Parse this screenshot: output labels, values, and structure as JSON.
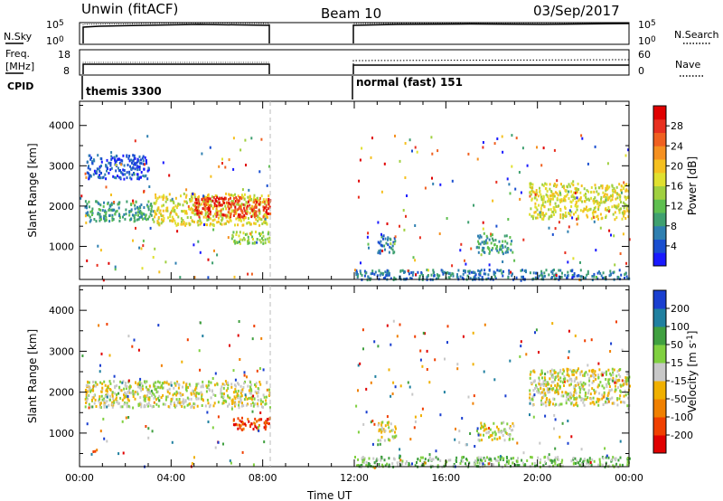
{
  "header": {
    "station": "Unwin (fitACF)",
    "beam": "Beam 10",
    "date": "03/Sep/2017"
  },
  "summary": {
    "nsky_label": "N.Sky",
    "freq_label_1": "Freq.",
    "freq_label_2": "[MHz]",
    "cpid_label": "CPID",
    "nsearch_label": "N.Search",
    "nave_label": "Nave",
    "nsky_ticks": [
      "10^5",
      "10^0"
    ],
    "nsearch_ticks": [
      "10^5",
      "10^0"
    ],
    "freq_ticks": [
      "18",
      "8"
    ],
    "nave_ticks": [
      "60",
      "0"
    ],
    "cpid_segments": [
      {
        "label": "themis 3300",
        "start_hour": 0,
        "end_hour": 8.33
      },
      {
        "label": "normal (fast) 151",
        "start_hour": 12,
        "end_hour": 24
      }
    ]
  },
  "chart_data": [
    {
      "type": "heatmap",
      "parameter": "power",
      "xlabel": "",
      "ylabel": "Slant Range [km]",
      "xlim": [
        0,
        24
      ],
      "ylim": [
        180,
        4600
      ],
      "yticks": [
        1000,
        2000,
        3000,
        4000
      ],
      "colorbar": {
        "label": "Power [dB]",
        "ticks": [
          "4",
          "8",
          "12",
          "16",
          "20",
          "24",
          "28"
        ],
        "colors": [
          "#1a1aff",
          "#1a4fd0",
          "#2f7fb0",
          "#3fa070",
          "#5fbf50",
          "#a0d040",
          "#e0e030",
          "#f5c020",
          "#f59020",
          "#f06020",
          "#e83020",
          "#e00000"
        ]
      },
      "regions": [
        {
          "t0": 0.2,
          "t1": 3.2,
          "r0": 1650,
          "r1": 2150,
          "level": 3
        },
        {
          "t0": 3.2,
          "t1": 8.3,
          "r0": 1550,
          "r1": 2350,
          "level": 6
        },
        {
          "t0": 5.0,
          "t1": 8.3,
          "r0": 1750,
          "r1": 2250,
          "level": 10
        },
        {
          "t0": 6.6,
          "t1": 8.3,
          "r0": 1100,
          "r1": 1400,
          "level": 5
        },
        {
          "t0": 13.0,
          "t1": 13.8,
          "r0": 850,
          "r1": 1300,
          "level": 2
        },
        {
          "t0": 17.3,
          "t1": 18.9,
          "r0": 850,
          "r1": 1300,
          "level": 3
        },
        {
          "t0": 12.0,
          "t1": 24.0,
          "r0": 200,
          "r1": 450,
          "level": 2
        },
        {
          "t0": 19.6,
          "t1": 24.0,
          "r0": 1700,
          "r1": 2600,
          "level": 6
        },
        {
          "t0": 0.3,
          "t1": 3.0,
          "r0": 2700,
          "r1": 3300,
          "level": 1
        }
      ]
    },
    {
      "type": "heatmap",
      "parameter": "velocity",
      "xlabel": "Time UT",
      "ylabel": "Slant Range [km]",
      "xlim": [
        0,
        24
      ],
      "ylim": [
        180,
        4600
      ],
      "yticks": [
        1000,
        2000,
        3000,
        4000
      ],
      "xticks": [
        "00:00",
        "04:00",
        "08:00",
        "12:00",
        "16:00",
        "20:00",
        "00:00"
      ],
      "colorbar": {
        "label": "Velocity [m s-1]",
        "label_main": "Velocity [m s",
        "label_sup": "-1",
        "label_end": "]",
        "ticks": [
          "-200",
          "-100",
          "-50",
          "-15",
          "15",
          "50",
          "100",
          "200"
        ],
        "colors": [
          "#e00000",
          "#f04000",
          "#f08000",
          "#f0b000",
          "#c8c8c8",
          "#80d040",
          "#40a040",
          "#2080a0",
          "#1a3fd0"
        ]
      },
      "regions": [
        {
          "t0": 0.2,
          "t1": 8.3,
          "r0": 1650,
          "r1": 2300,
          "level": 4
        },
        {
          "t0": 6.6,
          "t1": 8.3,
          "r0": 1100,
          "r1": 1400,
          "level": 1
        },
        {
          "t0": 13.0,
          "t1": 13.8,
          "r0": 850,
          "r1": 1300,
          "level": 4
        },
        {
          "t0": 17.3,
          "t1": 18.9,
          "r0": 850,
          "r1": 1300,
          "level": 4
        },
        {
          "t0": 12.0,
          "t1": 24.0,
          "r0": 200,
          "r1": 450,
          "level": 5
        },
        {
          "t0": 19.6,
          "t1": 24.0,
          "r0": 1700,
          "r1": 2600,
          "level": 4
        }
      ]
    }
  ]
}
